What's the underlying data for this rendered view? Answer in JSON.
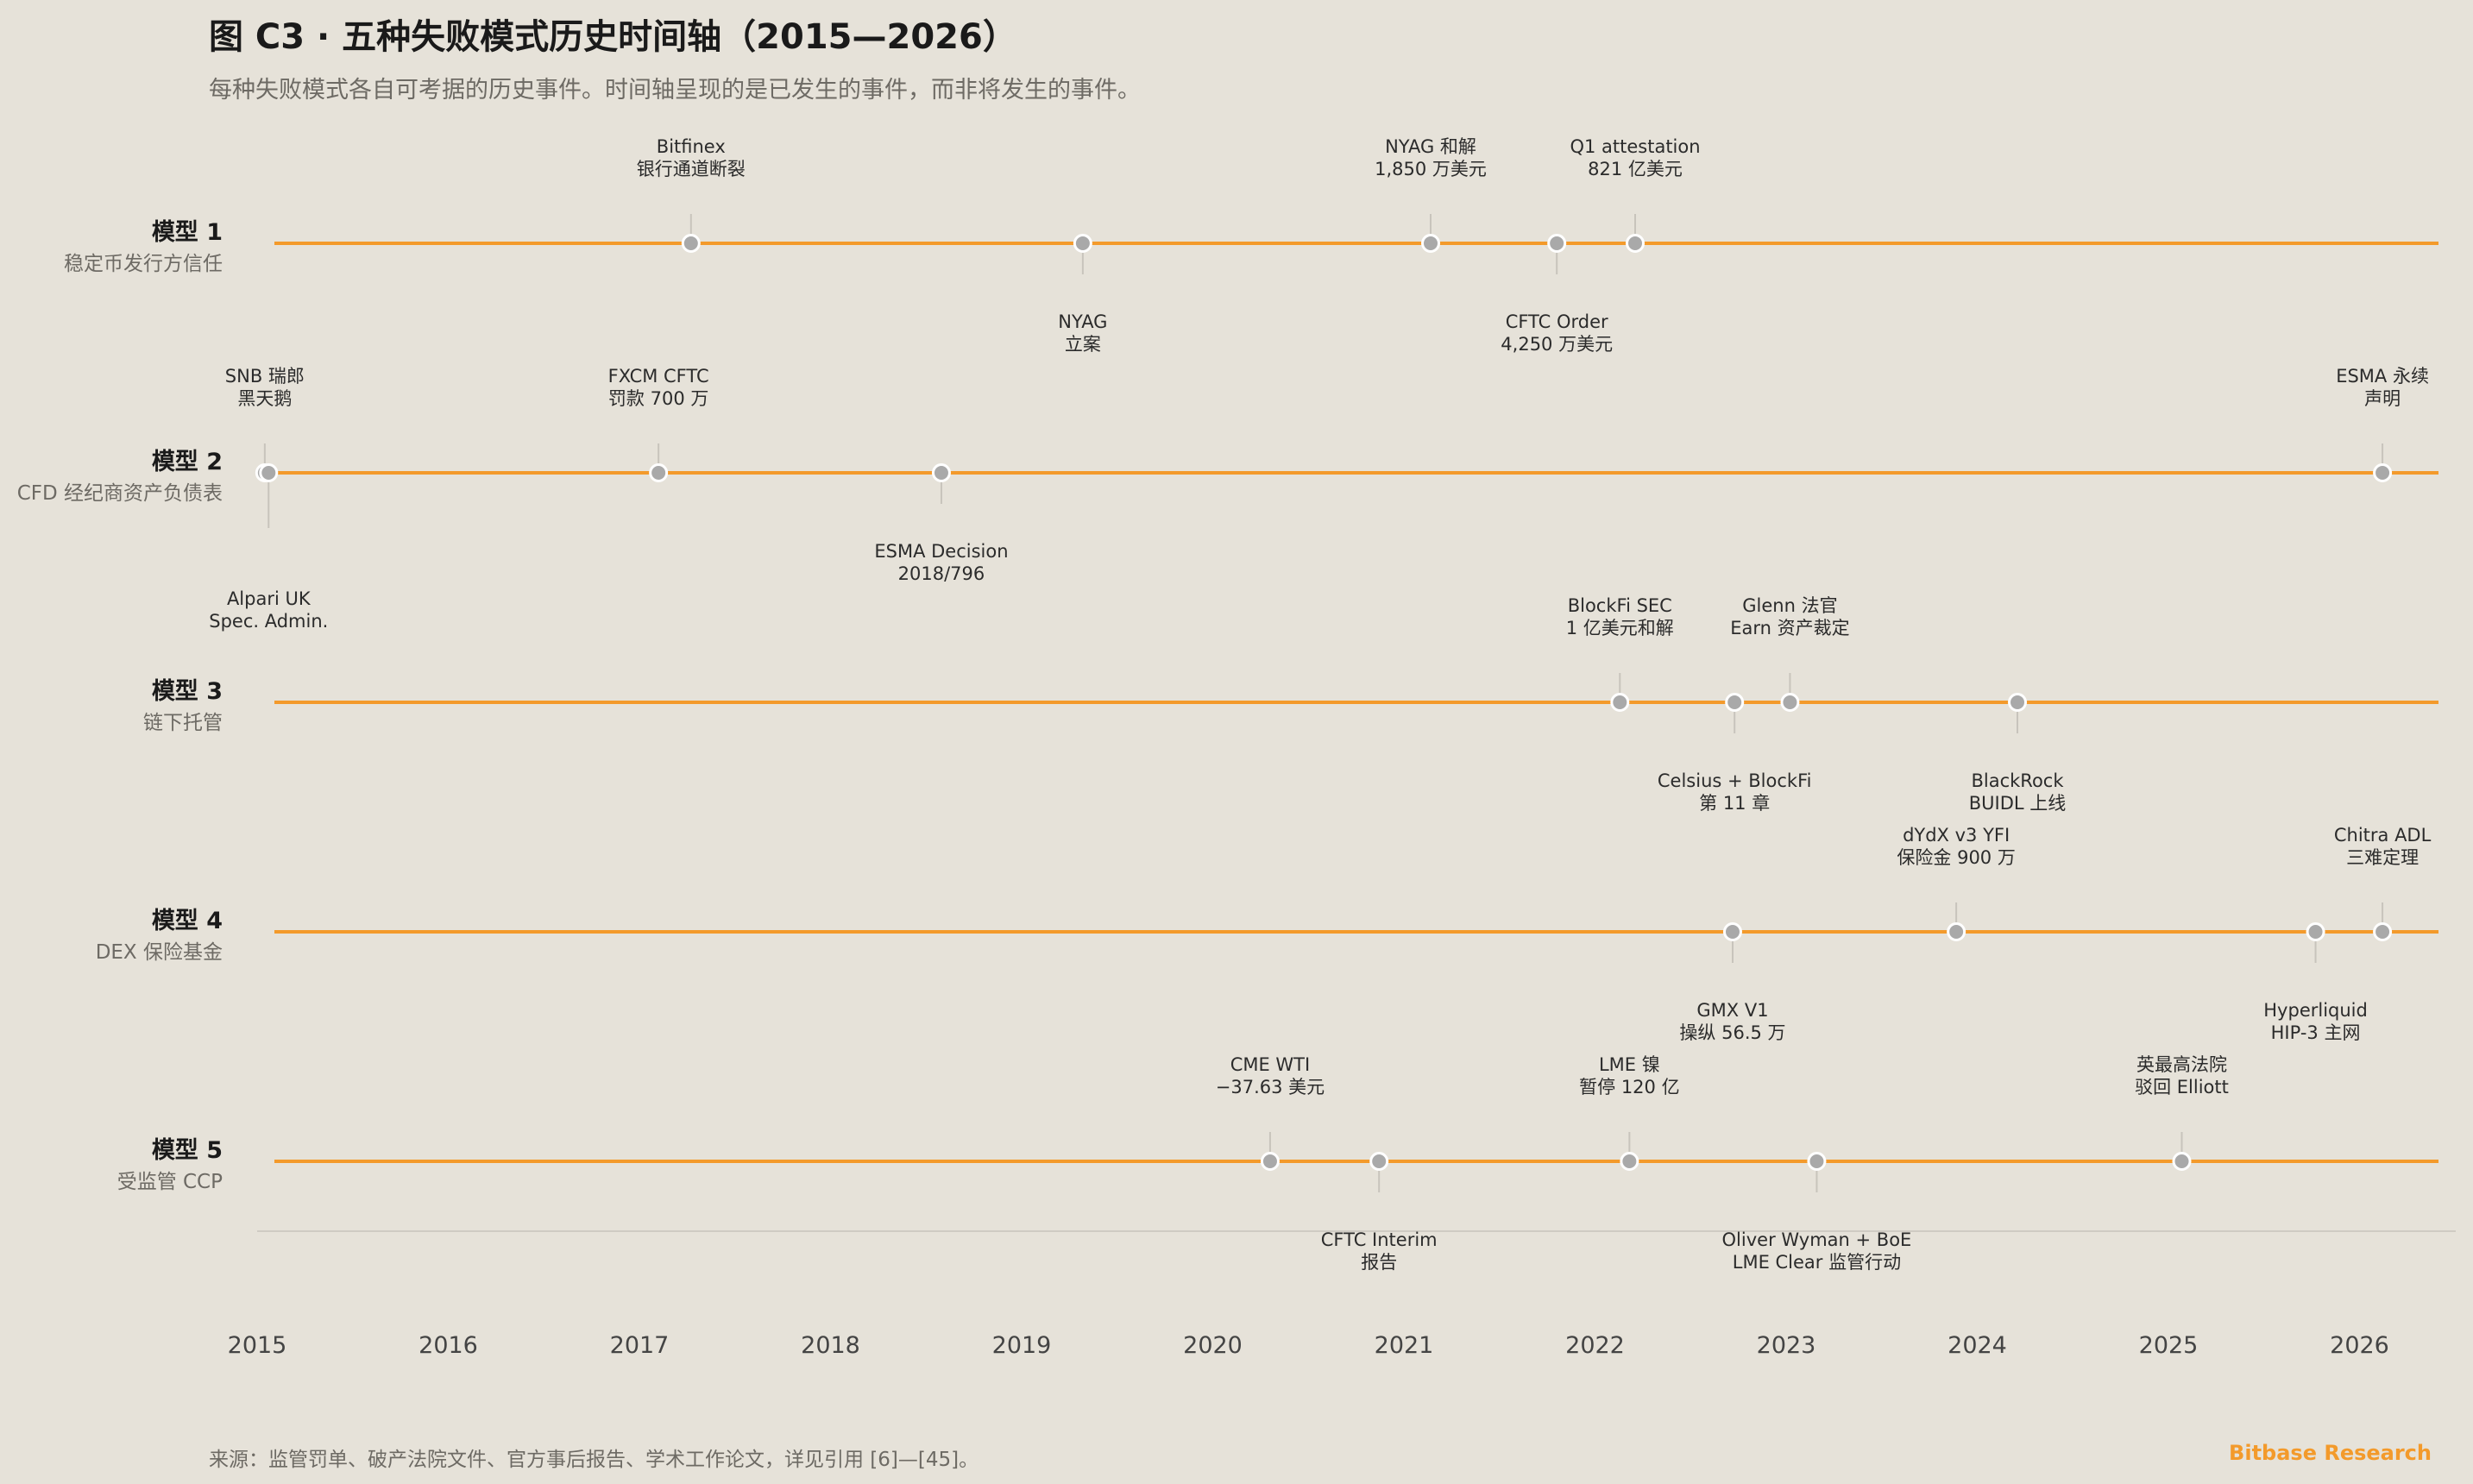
{
  "header": {
    "title": "图 C3 · 五种失败模式历史时间轴（2015—2026）",
    "subtitle": "每种失败模式各自可考据的历史事件。时间轴呈现的是已发生的事件，而非将发生的事件。"
  },
  "footer": {
    "source": "来源：监管罚单、破产法院文件、官方事后报告、学术工作论文，详见引用 [6]—[45]。",
    "brand": "Bitbase Research"
  },
  "chart_data": {
    "type": "timeline",
    "xlim": [
      2015,
      2026.4
    ],
    "x_ticks": [
      "2015",
      "2016",
      "2017",
      "2018",
      "2019",
      "2020",
      "2021",
      "2022",
      "2023",
      "2024",
      "2025",
      "2026"
    ],
    "colors": {
      "line": "#F39A2B",
      "marker": "#A9A9A9",
      "connector": "#C8C4BC",
      "axis": "#CFCBC3"
    },
    "rows": [
      {
        "name": "模型 1",
        "desc": "稳定币发行方信任",
        "events": [
          {
            "x": 2017.27,
            "label": [
              "Bitfinex",
              "银行通道断裂"
            ],
            "side": "above"
          },
          {
            "x": 2019.32,
            "label": [
              "NYAG",
              "立案"
            ],
            "side": "below"
          },
          {
            "x": 2021.14,
            "label": [
              "NYAG 和解",
              "1,850 万美元"
            ],
            "side": "above"
          },
          {
            "x": 2021.8,
            "label": [
              "CFTC Order",
              "4,250 万美元"
            ],
            "side": "below"
          },
          {
            "x": 2022.21,
            "label": [
              "Q1 attestation",
              "821 亿美元"
            ],
            "side": "above"
          }
        ]
      },
      {
        "name": "模型 2",
        "desc": "CFD 经纪商资产负债表",
        "events": [
          {
            "x": 2015.04,
            "label": [
              "SNB 瑞郎",
              "黑天鹅"
            ],
            "side": "above"
          },
          {
            "x": 2015.06,
            "label": [
              "Alpari UK",
              "Spec. Admin."
            ],
            "side": "below",
            "far": true
          },
          {
            "x": 2017.1,
            "label": [
              "FXCM CFTC",
              "罚款 700 万"
            ],
            "side": "above"
          },
          {
            "x": 2018.58,
            "label": [
              "ESMA Decision",
              "2018/796"
            ],
            "side": "below"
          },
          {
            "x": 2026.12,
            "label": [
              "ESMA 永续",
              "声明"
            ],
            "side": "above"
          }
        ]
      },
      {
        "name": "模型 3",
        "desc": "链下托管",
        "events": [
          {
            "x": 2022.13,
            "label": [
              "BlockFi SEC",
              "1 亿美元和解"
            ],
            "side": "above"
          },
          {
            "x": 2022.73,
            "label": [
              "Celsius + BlockFi",
              "第 11 章"
            ],
            "side": "below"
          },
          {
            "x": 2023.02,
            "label": [
              "Glenn 法官",
              "Earn 资产裁定"
            ],
            "side": "above"
          },
          {
            "x": 2024.21,
            "label": [
              "BlackRock",
              "BUIDL 上线"
            ],
            "side": "below"
          }
        ]
      },
      {
        "name": "模型 4",
        "desc": "DEX 保险基金",
        "events": [
          {
            "x": 2022.72,
            "label": [
              "GMX V1",
              "操纵 56.5 万"
            ],
            "side": "below"
          },
          {
            "x": 2023.89,
            "label": [
              "dYdX v3 YFI",
              "保险金 900 万"
            ],
            "side": "above"
          },
          {
            "x": 2025.77,
            "label": [
              "Hyperliquid",
              "HIP-3 主网"
            ],
            "side": "below"
          },
          {
            "x": 2026.12,
            "label": [
              "Chitra ADL",
              "三难定理"
            ],
            "side": "above"
          }
        ]
      },
      {
        "name": "模型 5",
        "desc": "受监管 CCP",
        "events": [
          {
            "x": 2020.3,
            "label": [
              "CME WTI",
              "−37.63 美元"
            ],
            "side": "above"
          },
          {
            "x": 2020.87,
            "label": [
              "CFTC Interim",
              "报告"
            ],
            "side": "below"
          },
          {
            "x": 2022.18,
            "label": [
              "LME 镍",
              "暂停 120 亿"
            ],
            "side": "above"
          },
          {
            "x": 2023.16,
            "label": [
              "Oliver Wyman + BoE",
              "LME Clear 监管行动"
            ],
            "side": "below"
          },
          {
            "x": 2025.07,
            "label": [
              "英最高法院",
              "驳回 Elliott"
            ],
            "side": "above"
          }
        ]
      }
    ]
  }
}
